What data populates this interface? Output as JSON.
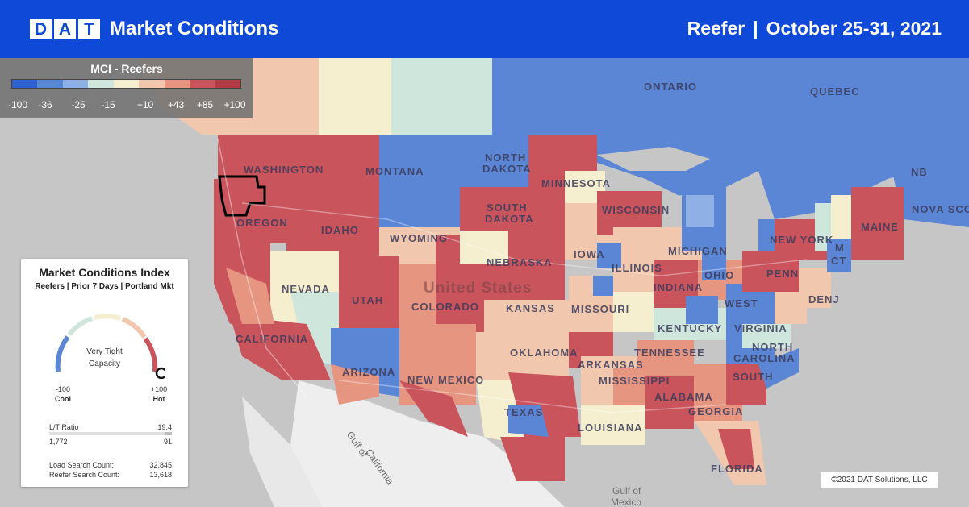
{
  "header": {
    "logo_letters": [
      "D",
      "A",
      "T"
    ],
    "title": "Market Conditions",
    "equipment": "Reefer",
    "separator": "|",
    "date_range": "October 25-31, 2021"
  },
  "legend": {
    "title": "MCI - Reefers",
    "ticks": [
      "-100",
      "-36",
      "-25",
      "-15",
      "+10",
      "+43",
      "+85",
      "+100"
    ],
    "colors": [
      "#2f5fd0",
      "#5b86d6",
      "#8fb0e4",
      "#cfe6dc",
      "#f6efcf",
      "#f1c7ad",
      "#e69580",
      "#c9545c",
      "#b13b45"
    ]
  },
  "card": {
    "title": "Market Conditions Index",
    "subtitle": "Reefers | Prior 7 Days | Portland Mkt",
    "gauge_status_line1": "Very Tight",
    "gauge_status_line2": "Capacity",
    "gauge_value": 100,
    "cool_value": "-100",
    "cool_label": "Cool",
    "hot_value": "+100",
    "hot_label": "Hot",
    "lt_label": "L/T Ratio",
    "lt_value": "19.4",
    "lt_loads": "1,772",
    "lt_trucks": "91",
    "load_search_label": "Load Search Count:",
    "load_search_value": "32,845",
    "reefer_search_label": "Reefer Search Count:",
    "reefer_search_value": "13,618"
  },
  "map_labels": {
    "washington": "WASHINGTON",
    "oregon": "OREGON",
    "idaho": "IDAHO",
    "montana": "MONTANA",
    "north_dakota_1": "NORTH",
    "north_dakota_2": "DAKOTA",
    "south_dakota_1": "SOUTH",
    "south_dakota_2": "DAKOTA",
    "minnesota": "MINNESOTA",
    "wyoming": "WYOMING",
    "nebraska": "NEBRASKA",
    "nevada": "NEVADA",
    "utah": "UTAH",
    "colorado": "COLORADO",
    "kansas": "KANSAS",
    "california": "CALIFORNIA",
    "arizona": "ARIZONA",
    "new_mexico": "NEW MEXICO",
    "oklahoma": "OKLAHOMA",
    "texas": "TEXAS",
    "iowa": "IOWA",
    "wisconsin": "WISCONSIN",
    "illinois": "ILLINOIS",
    "missouri": "MISSOURI",
    "arkansas": "ARKANSAS",
    "louisiana": "LOUISIANA",
    "mississippi": "MISSISSIPPI",
    "alabama": "ALABAMA",
    "tennessee": "TENNESSEE",
    "kentucky": "KENTUCKY",
    "indiana": "INDIANA",
    "michigan": "MICHIGAN",
    "ohio": "OHIO",
    "west_virginia": "WEST",
    "virginia": "VIRGINIA",
    "north_carolina": "NORTH",
    "carolina": "CAROLINA",
    "south_carolina": "SOUTH",
    "georgia": "GEORGIA",
    "florida": "FLORIDA",
    "penn": "PENN",
    "new_york": "NEW YORK",
    "denj": "DENJ",
    "ct": "CT",
    "ma": "M",
    "maine": "MAINE",
    "nb": "NB",
    "nova": "NOVA SCO",
    "ontario": "ONTARIO",
    "quebec": "QUEBEC",
    "united_states": "United States",
    "gulf_california_1": "Gulf of",
    "gulf_california_2": "California",
    "gulf_mexico_1": "Gulf of",
    "gulf_mexico_2": "Mexico"
  },
  "copyright": "©2021 DAT Solutions, LLC"
}
